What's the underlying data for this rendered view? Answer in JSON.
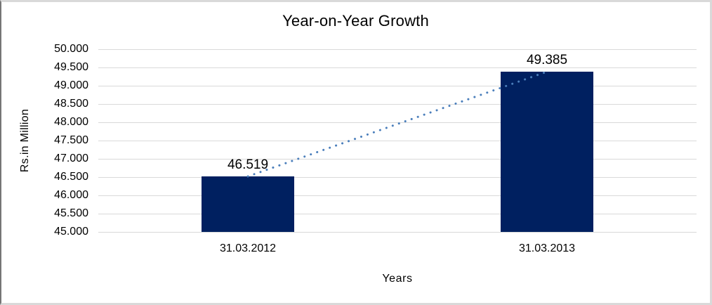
{
  "chart_data": {
    "type": "bar",
    "title": "Year-on-Year Growth",
    "xlabel": "Years",
    "ylabel": "Rs.in Million",
    "categories": [
      "31.03.2012",
      "31.03.2013"
    ],
    "series": [
      {
        "values": [
          46.519,
          49.385
        ],
        "value_labels": [
          "46.519",
          "49.385"
        ]
      }
    ],
    "ylim": [
      45.0,
      50.0
    ],
    "ytick_step": 0.5,
    "ytick_labels": [
      "50.000",
      "49.500",
      "49.000",
      "48.500",
      "48.000",
      "47.500",
      "47.000",
      "46.500",
      "46.000",
      "45.500",
      "45.000"
    ],
    "grid": true,
    "legend": "none",
    "trendline": {
      "type": "linear",
      "style": "dotted",
      "connects": [
        "31.03.2012",
        "31.03.2013"
      ]
    },
    "colors": {
      "bar": "#002060",
      "trendline": "#4a7ebb",
      "gridline": "#d9d9d9",
      "text": "#000000",
      "frame_border": "#d9d9d9",
      "frame_border_left": "#757575"
    }
  }
}
